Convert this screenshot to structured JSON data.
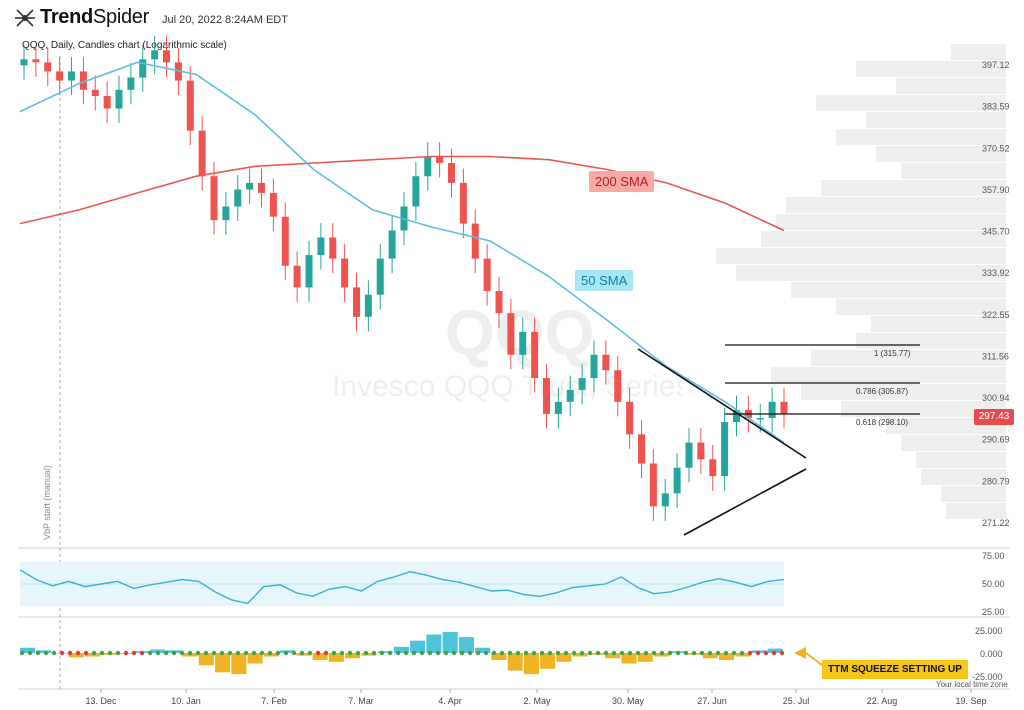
{
  "header": {
    "brand_light": "Trend",
    "brand_bold": "Spider",
    "date": "Jul 20, 2022 8:24AM EDT",
    "subtitle": "QQQ, Daily, Candles chart (Logarithmic scale)"
  },
  "watermark": {
    "ticker": "QQQ",
    "name": "Invesco QQQ Trust, Series 1"
  },
  "vbp_label": "VbP start (manual)",
  "price_axis": [
    "397.12",
    "383.59",
    "370.52",
    "357.90",
    "345.70",
    "333.92",
    "322.55",
    "311.56",
    "300.94",
    "290.69",
    "280.79",
    "271.22"
  ],
  "current_price": "297.43",
  "annotations": {
    "sma200": "200 SMA",
    "sma50": "50 SMA",
    "ttm": "TTM SQUEEZE SETTING UP"
  },
  "fib_levels": [
    {
      "label": "1 (315.77)",
      "price": 315.77
    },
    {
      "label": "0.786 (305.87)",
      "price": 305.87
    },
    {
      "label": "0.618 (298.10)",
      "price": 298.1
    }
  ],
  "rsi_axis": [
    "75.00",
    "50.00",
    "25.00"
  ],
  "squeeze_axis": [
    "25.000",
    "0.000",
    "-25.000"
  ],
  "timezone_note": "Your local time zone",
  "x_axis": [
    "13. Dec",
    "10. Jan",
    "7. Feb",
    "7. Mar",
    "4. Apr",
    "2. May",
    "30. May",
    "27. Jun",
    "25. Jul",
    "22. Aug",
    "19. Sep"
  ],
  "colors": {
    "up": "#26a69a",
    "down": "#ef5350",
    "sma50": "#5bc0de",
    "sma200": "#e8584f",
    "rsi_band": "#e6f6fa",
    "squeeze_pos": "#4fc3d9",
    "squeeze_neg": "#f0b323"
  },
  "chart_data": {
    "type": "candlestick",
    "sma200": [
      348,
      352,
      357,
      362,
      365,
      366,
      367,
      368,
      368,
      367,
      364,
      360,
      354,
      346
    ],
    "sma50": [
      382,
      391,
      398,
      394,
      381,
      364,
      352,
      347,
      343,
      333,
      321,
      309,
      300,
      290
    ],
    "closes": [
      399,
      398,
      395,
      392,
      395,
      389,
      387,
      383,
      389,
      393,
      399,
      402,
      398,
      392,
      376,
      362,
      349,
      353,
      358,
      360,
      357,
      350,
      336,
      330,
      339,
      344,
      338,
      330,
      322,
      328,
      338,
      346,
      353,
      362,
      368,
      366,
      360,
      348,
      338,
      329,
      323,
      312,
      318,
      306,
      297,
      300,
      303,
      306,
      312,
      308,
      300,
      292,
      285,
      275,
      278,
      284,
      290,
      286,
      282,
      295,
      298,
      296,
      296,
      300,
      297
    ],
    "rsi": [
      66,
      55,
      48,
      53,
      47,
      50,
      53,
      45,
      49,
      52,
      55,
      53,
      41,
      32,
      28,
      47,
      49,
      40,
      36,
      44,
      47,
      42,
      53,
      58,
      64,
      60,
      55,
      52,
      47,
      42,
      43,
      38,
      36,
      40,
      46,
      48,
      50,
      58,
      46,
      39,
      41,
      46,
      52,
      56,
      52,
      47,
      53,
      55
    ],
    "squeeze_hist": [
      6,
      3,
      0,
      -5,
      -4,
      -2,
      -1,
      2,
      4,
      3,
      -4,
      -14,
      -22,
      -24,
      -12,
      -4,
      3,
      -3,
      -8,
      -10,
      -6,
      -3,
      2,
      7,
      14,
      21,
      24,
      18,
      6,
      -8,
      -20,
      -24,
      -18,
      -10,
      -4,
      -2,
      -6,
      -12,
      -10,
      -4,
      2,
      -2,
      -6,
      -8,
      -4,
      3,
      5
    ]
  }
}
